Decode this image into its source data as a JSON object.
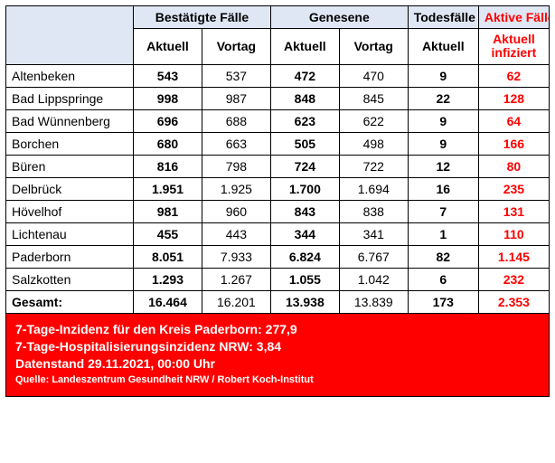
{
  "columns": {
    "confirmed": "Bestätigte Fälle",
    "recovered": "Genesene",
    "deaths": "Todesfälle",
    "active": "Aktive Fälle",
    "current": "Aktuell",
    "prev": "Vortag",
    "active_now": "Aktuell infiziert"
  },
  "rows": [
    {
      "place": "Altenbeken",
      "conf_cur": "543",
      "conf_prev": "537",
      "rec_cur": "472",
      "rec_prev": "470",
      "deaths": "9",
      "active": "62"
    },
    {
      "place": "Bad Lippspringe",
      "conf_cur": "998",
      "conf_prev": "987",
      "rec_cur": "848",
      "rec_prev": "845",
      "deaths": "22",
      "active": "128"
    },
    {
      "place": "Bad Wünnenberg",
      "conf_cur": "696",
      "conf_prev": "688",
      "rec_cur": "623",
      "rec_prev": "622",
      "deaths": "9",
      "active": "64"
    },
    {
      "place": "Borchen",
      "conf_cur": "680",
      "conf_prev": "663",
      "rec_cur": "505",
      "rec_prev": "498",
      "deaths": "9",
      "active": "166"
    },
    {
      "place": "Büren",
      "conf_cur": "816",
      "conf_prev": "798",
      "rec_cur": "724",
      "rec_prev": "722",
      "deaths": "12",
      "active": "80"
    },
    {
      "place": "Delbrück",
      "conf_cur": "1.951",
      "conf_prev": "1.925",
      "rec_cur": "1.700",
      "rec_prev": "1.694",
      "deaths": "16",
      "active": "235"
    },
    {
      "place": "Hövelhof",
      "conf_cur": "981",
      "conf_prev": "960",
      "rec_cur": "843",
      "rec_prev": "838",
      "deaths": "7",
      "active": "131"
    },
    {
      "place": "Lichtenau",
      "conf_cur": "455",
      "conf_prev": "443",
      "rec_cur": "344",
      "rec_prev": "341",
      "deaths": "1",
      "active": "110"
    },
    {
      "place": "Paderborn",
      "conf_cur": "8.051",
      "conf_prev": "7.933",
      "rec_cur": "6.824",
      "rec_prev": "6.767",
      "deaths": "82",
      "active": "1.145"
    },
    {
      "place": "Salzkotten",
      "conf_cur": "1.293",
      "conf_prev": "1.267",
      "rec_cur": "1.055",
      "rec_prev": "1.042",
      "deaths": "6",
      "active": "232"
    }
  ],
  "total": {
    "label": "Gesamt:",
    "conf_cur": "16.464",
    "conf_prev": "16.201",
    "rec_cur": "13.938",
    "rec_prev": "13.839",
    "deaths": "173",
    "active": "2.353"
  },
  "footer": {
    "line1": "7-Tage-Inzidenz für den Kreis Paderborn: 277,9",
    "line2": "7-Tage-Hospitalisierungsinzidenz NRW: 3,84",
    "line3": "Datenstand 29.11.2021, 00:00 Uhr",
    "source": "Quelle: Landeszentrum Gesundheit NRW / Robert Koch-Institut"
  },
  "styling": {
    "header_bg": "#e0e7f4",
    "footer_bg": "#ff0000",
    "footer_text": "#ffffff",
    "border_color": "#000000",
    "active_color": "#ff0000",
    "font_family": "Arial",
    "base_font_size": 14
  }
}
